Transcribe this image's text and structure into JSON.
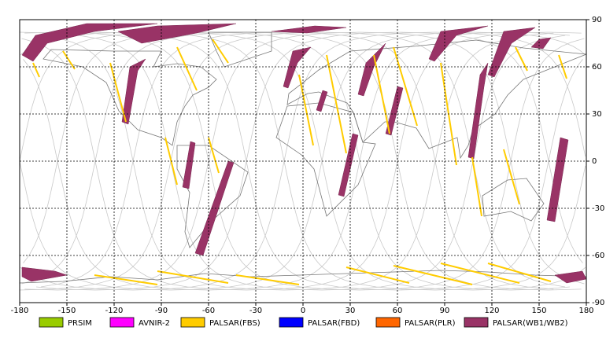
{
  "map": {
    "xlim": [
      -180,
      180
    ],
    "ylim": [
      -90,
      90
    ],
    "xticks": [
      -180,
      -150,
      -120,
      -90,
      -60,
      -30,
      0,
      30,
      60,
      90,
      120,
      150,
      180
    ],
    "yticks": [
      -90,
      -60,
      -30,
      0,
      30,
      60,
      90
    ],
    "legend": [
      {
        "label": "PRSIM",
        "color": "#99cc00"
      },
      {
        "label": "AVNIR-2",
        "color": "#ff00ff"
      },
      {
        "label": "PALSAR(FBS)",
        "color": "#ffcc00"
      },
      {
        "label": "PALSAR(FBD)",
        "color": "#0000ff"
      },
      {
        "label": "PALSAR(PLR)",
        "color": "#ff6600"
      },
      {
        "label": "PALSAR(WB1/WB2)",
        "color": "#993366"
      }
    ]
  }
}
